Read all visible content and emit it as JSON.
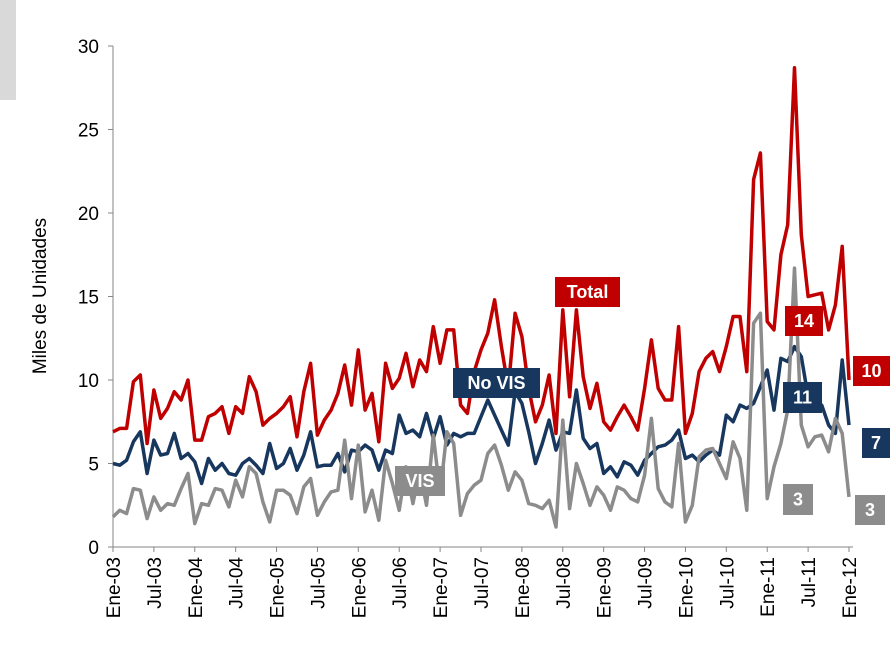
{
  "chart_data": {
    "type": "line",
    "y_label": "Miles de Unidades",
    "ylim": [
      0,
      30
    ],
    "yticks": [
      0,
      5,
      10,
      15,
      20,
      25,
      30
    ],
    "grid": false,
    "categories": [
      "Ene-03",
      null,
      null,
      null,
      null,
      null,
      "Jul-03",
      null,
      null,
      null,
      null,
      null,
      "Ene-04",
      null,
      null,
      null,
      null,
      null,
      "Jul-04",
      null,
      null,
      null,
      null,
      null,
      "Ene-05",
      null,
      null,
      null,
      null,
      null,
      "Jul-05",
      null,
      null,
      null,
      null,
      null,
      "Ene-06",
      null,
      null,
      null,
      null,
      null,
      "Jul-06",
      null,
      null,
      null,
      null,
      null,
      "Ene-07",
      null,
      null,
      null,
      null,
      null,
      "Jul-07",
      null,
      null,
      null,
      null,
      null,
      "Ene-08",
      null,
      null,
      null,
      null,
      null,
      "Jul-08",
      null,
      null,
      null,
      null,
      null,
      "Ene-09",
      null,
      null,
      null,
      null,
      null,
      "Jul-09",
      null,
      null,
      null,
      null,
      null,
      "Ene-10",
      null,
      null,
      null,
      null,
      null,
      "Jul-10",
      null,
      null,
      null,
      null,
      null,
      "Ene-11",
      null,
      null,
      null,
      null,
      null,
      "Jul-11",
      null,
      null,
      null,
      null,
      null,
      "Ene-12"
    ],
    "series": [
      {
        "name": "Total",
        "color": "#c00000",
        "values": [
          6.9,
          7.1,
          7.1,
          9.9,
          10.3,
          6.2,
          9.4,
          7.7,
          8.3,
          9.3,
          8.8,
          10.0,
          6.4,
          6.4,
          7.8,
          8.0,
          8.4,
          6.8,
          8.4,
          8.0,
          10.2,
          9.3,
          7.3,
          7.7,
          8.0,
          8.4,
          9.0,
          6.6,
          9.3,
          11.0,
          6.7,
          7.6,
          8.2,
          9.2,
          10.9,
          8.5,
          11.8,
          8.2,
          9.2,
          6.3,
          11.0,
          9.5,
          10.1,
          11.6,
          9.6,
          11.2,
          10.5,
          13.2,
          11.0,
          13.0,
          13.0,
          8.5,
          8.0,
          10.5,
          11.8,
          12.8,
          14.8,
          12.0,
          9.5,
          14.0,
          12.6,
          9.5,
          7.5,
          8.5,
          10.3,
          6.8,
          14.2,
          9.0,
          14.2,
          10.2,
          8.3,
          9.8,
          7.5,
          7.0,
          7.8,
          8.5,
          7.8,
          7.0,
          9.5,
          12.4,
          9.5,
          8.8,
          8.8,
          13.2,
          6.8,
          8.0,
          10.5,
          11.3,
          11.7,
          10.5,
          12.0,
          13.8,
          13.8,
          10.5,
          22.0,
          23.6,
          13.5,
          13.0,
          17.5,
          19.3,
          28.7,
          18.7,
          15.0,
          15.1,
          15.2,
          13.0,
          14.5,
          18.0,
          10.0
        ]
      },
      {
        "name": "No VIS",
        "color": "#17375e",
        "values": [
          5.0,
          4.9,
          5.2,
          6.3,
          6.9,
          4.4,
          6.4,
          5.5,
          5.6,
          6.8,
          5.3,
          5.6,
          5.1,
          3.8,
          5.3,
          4.6,
          5.0,
          4.4,
          4.3,
          5.0,
          5.3,
          4.9,
          4.4,
          6.2,
          4.7,
          5.0,
          5.9,
          4.6,
          5.5,
          6.9,
          4.8,
          4.9,
          4.9,
          5.6,
          4.5,
          5.8,
          5.7,
          6.1,
          5.8,
          4.6,
          5.8,
          5.6,
          7.9,
          6.8,
          7.0,
          6.6,
          8.0,
          6.5,
          7.8,
          6.1,
          6.8,
          6.6,
          6.8,
          6.8,
          7.8,
          8.8,
          7.9,
          7.0,
          6.1,
          9.3,
          8.6,
          6.9,
          5.0,
          6.2,
          7.6,
          5.8,
          6.9,
          6.8,
          9.4,
          6.5,
          5.9,
          6.2,
          4.4,
          4.8,
          4.2,
          5.1,
          4.9,
          4.3,
          5.2,
          5.6,
          6.0,
          6.1,
          6.4,
          7.0,
          5.3,
          5.5,
          5.1,
          5.5,
          5.8,
          5.5,
          7.9,
          7.5,
          8.5,
          8.3,
          8.6,
          9.6,
          10.6,
          8.2,
          11.3,
          11.1,
          12.0,
          11.4,
          9.0,
          8.5,
          8.5,
          7.3,
          6.8,
          11.2,
          7.3
        ]
      },
      {
        "name": "VIS",
        "color": "#8c8c8c",
        "values": [
          1.8,
          2.2,
          2.0,
          3.5,
          3.4,
          1.7,
          3.0,
          2.2,
          2.6,
          2.5,
          3.5,
          4.4,
          1.4,
          2.6,
          2.5,
          3.5,
          3.4,
          2.4,
          4.0,
          3.0,
          4.8,
          4.4,
          2.7,
          1.5,
          3.4,
          3.4,
          3.1,
          2.0,
          3.6,
          4.1,
          1.9,
          2.7,
          3.3,
          3.4,
          6.4,
          2.9,
          6.1,
          2.1,
          3.4,
          1.6,
          5.2,
          3.8,
          2.2,
          4.8,
          2.6,
          4.6,
          2.5,
          6.7,
          3.2,
          6.9,
          6.2,
          1.9,
          3.2,
          3.7,
          4.0,
          5.6,
          6.1,
          4.9,
          3.4,
          4.5,
          4.0,
          2.6,
          2.5,
          2.3,
          2.8,
          1.2,
          7.6,
          2.3,
          5.0,
          3.8,
          2.5,
          3.6,
          3.1,
          2.2,
          3.6,
          3.4,
          2.9,
          2.7,
          4.3,
          7.7,
          3.5,
          2.7,
          2.4,
          6.2,
          1.5,
          2.5,
          5.4,
          5.8,
          5.9,
          5.0,
          4.1,
          6.3,
          5.3,
          2.2,
          13.4,
          14.0,
          2.9,
          4.8,
          6.2,
          8.2,
          16.7,
          7.3,
          6.0,
          6.6,
          6.7,
          5.7,
          7.7,
          6.8,
          3.0
        ]
      }
    ],
    "annotations": [
      "14",
      "11",
      "3"
    ],
    "end_labels": [
      "10",
      "7",
      "3"
    ]
  }
}
